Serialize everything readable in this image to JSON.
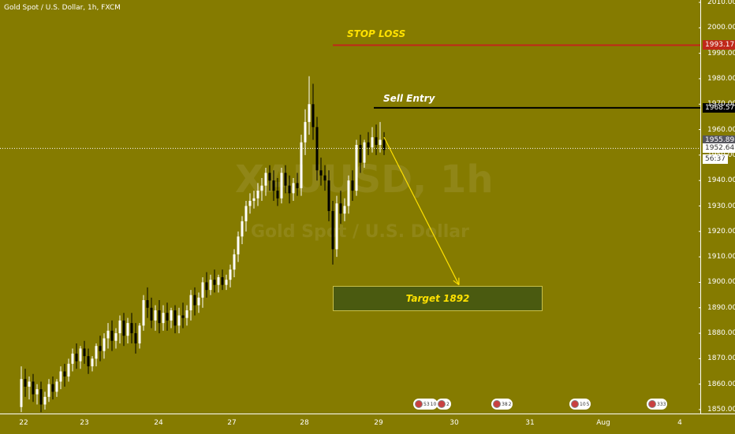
{
  "chart_data": {
    "type": "candlestick",
    "title": "Gold Spot / U.S. Dollar, 1h, FXCM",
    "watermark": {
      "symbol": "XAUUSD, 1h",
      "name": "Gold Spot / U.S. Dollar"
    },
    "y_axis": {
      "range": [
        1846,
        2012
      ],
      "ticks": [
        "2010.00",
        "2000.00",
        "1990.00",
        "1980.00",
        "1970.00",
        "1960.00",
        "1950.00",
        "1940.00",
        "1930.00",
        "1920.00",
        "1910.00",
        "1900.00",
        "1890.00",
        "1880.00",
        "1870.00",
        "1860.00",
        "1850.00"
      ]
    },
    "x_axis": {
      "ticks": [
        "22",
        "23",
        "24",
        "27",
        "28",
        "29",
        "30",
        "31",
        "Aug",
        "4"
      ]
    },
    "price_labels": {
      "stop_loss": "1993.17",
      "sell_entry": "1968.57",
      "last_price": "1955.89",
      "current_price": "1952.64",
      "countdown": "56:37"
    },
    "annotations": {
      "stop_loss": "STOP LOSS",
      "sell_entry": "Sell Entry",
      "target": "Target 1892"
    },
    "events": [
      {
        "label": "53",
        "label2": "10"
      },
      {
        "label": "2"
      },
      {
        "label": "38",
        "label2": "2"
      },
      {
        "label": "10",
        "label2": "5"
      },
      {
        "label": "333"
      }
    ],
    "colors": {
      "background": "#857b00",
      "up": "#ffffff",
      "down": "#000000",
      "stop_line": "#c0281a",
      "entry_line": "#000000",
      "projection": "#ffe100"
    },
    "candles": [
      {
        "o": 1851,
        "h": 1867,
        "c": 1862,
        "l": 1849
      },
      {
        "o": 1862,
        "h": 1866,
        "c": 1859,
        "l": 1855
      },
      {
        "o": 1859,
        "h": 1863,
        "c": 1861,
        "l": 1854
      },
      {
        "o": 1861,
        "h": 1864,
        "c": 1856,
        "l": 1853
      },
      {
        "o": 1856,
        "h": 1860,
        "c": 1858,
        "l": 1852
      },
      {
        "o": 1858,
        "h": 1861,
        "c": 1852,
        "l": 1849
      },
      {
        "o": 1852,
        "h": 1857,
        "c": 1855,
        "l": 1850
      },
      {
        "o": 1855,
        "h": 1862,
        "c": 1860,
        "l": 1853
      },
      {
        "o": 1860,
        "h": 1863,
        "c": 1857,
        "l": 1854
      },
      {
        "o": 1857,
        "h": 1862,
        "c": 1861,
        "l": 1855
      },
      {
        "o": 1861,
        "h": 1867,
        "c": 1865,
        "l": 1858
      },
      {
        "o": 1865,
        "h": 1868,
        "c": 1863,
        "l": 1859
      },
      {
        "o": 1863,
        "h": 1870,
        "c": 1868,
        "l": 1861
      },
      {
        "o": 1868,
        "h": 1874,
        "c": 1872,
        "l": 1865
      },
      {
        "o": 1872,
        "h": 1876,
        "c": 1869,
        "l": 1866
      },
      {
        "o": 1869,
        "h": 1875,
        "c": 1874,
        "l": 1866
      },
      {
        "o": 1874,
        "h": 1877,
        "c": 1871,
        "l": 1868
      },
      {
        "o": 1871,
        "h": 1874,
        "c": 1867,
        "l": 1864
      },
      {
        "o": 1867,
        "h": 1871,
        "c": 1870,
        "l": 1865
      },
      {
        "o": 1870,
        "h": 1876,
        "c": 1875,
        "l": 1867
      },
      {
        "o": 1875,
        "h": 1879,
        "c": 1873,
        "l": 1869
      },
      {
        "o": 1873,
        "h": 1880,
        "c": 1878,
        "l": 1870
      },
      {
        "o": 1878,
        "h": 1884,
        "c": 1881,
        "l": 1874
      },
      {
        "o": 1881,
        "h": 1885,
        "c": 1877,
        "l": 1873
      },
      {
        "o": 1877,
        "h": 1882,
        "c": 1880,
        "l": 1874
      },
      {
        "o": 1880,
        "h": 1887,
        "c": 1885,
        "l": 1876
      },
      {
        "o": 1885,
        "h": 1888,
        "c": 1879,
        "l": 1875
      },
      {
        "o": 1879,
        "h": 1886,
        "c": 1884,
        "l": 1876
      },
      {
        "o": 1884,
        "h": 1888,
        "c": 1880,
        "l": 1876
      },
      {
        "o": 1880,
        "h": 1884,
        "c": 1876,
        "l": 1872
      },
      {
        "o": 1876,
        "h": 1884,
        "c": 1883,
        "l": 1874
      },
      {
        "o": 1883,
        "h": 1895,
        "c": 1893,
        "l": 1881
      },
      {
        "o": 1893,
        "h": 1898,
        "c": 1890,
        "l": 1886
      },
      {
        "o": 1890,
        "h": 1894,
        "c": 1885,
        "l": 1882
      },
      {
        "o": 1885,
        "h": 1891,
        "c": 1889,
        "l": 1881
      },
      {
        "o": 1889,
        "h": 1893,
        "c": 1884,
        "l": 1880
      },
      {
        "o": 1884,
        "h": 1891,
        "c": 1888,
        "l": 1881
      },
      {
        "o": 1888,
        "h": 1892,
        "c": 1885,
        "l": 1881
      },
      {
        "o": 1885,
        "h": 1890,
        "c": 1889,
        "l": 1882
      },
      {
        "o": 1889,
        "h": 1891,
        "c": 1883,
        "l": 1880
      },
      {
        "o": 1883,
        "h": 1890,
        "c": 1887,
        "l": 1880
      },
      {
        "o": 1887,
        "h": 1892,
        "c": 1886,
        "l": 1882
      },
      {
        "o": 1886,
        "h": 1891,
        "c": 1889,
        "l": 1883
      },
      {
        "o": 1889,
        "h": 1897,
        "c": 1895,
        "l": 1885
      },
      {
        "o": 1895,
        "h": 1898,
        "c": 1891,
        "l": 1887
      },
      {
        "o": 1891,
        "h": 1896,
        "c": 1894,
        "l": 1888
      },
      {
        "o": 1894,
        "h": 1902,
        "c": 1900,
        "l": 1890
      },
      {
        "o": 1900,
        "h": 1904,
        "c": 1897,
        "l": 1894
      },
      {
        "o": 1897,
        "h": 1903,
        "c": 1901,
        "l": 1895
      },
      {
        "o": 1901,
        "h": 1905,
        "c": 1899,
        "l": 1896
      },
      {
        "o": 1899,
        "h": 1903,
        "c": 1902,
        "l": 1896
      },
      {
        "o": 1902,
        "h": 1905,
        "c": 1899,
        "l": 1897
      },
      {
        "o": 1899,
        "h": 1903,
        "c": 1901,
        "l": 1897
      },
      {
        "o": 1901,
        "h": 1907,
        "c": 1905,
        "l": 1898
      },
      {
        "o": 1905,
        "h": 1913,
        "c": 1911,
        "l": 1902
      },
      {
        "o": 1911,
        "h": 1920,
        "c": 1918,
        "l": 1908
      },
      {
        "o": 1918,
        "h": 1926,
        "c": 1924,
        "l": 1915
      },
      {
        "o": 1924,
        "h": 1932,
        "c": 1930,
        "l": 1920
      },
      {
        "o": 1930,
        "h": 1935,
        "c": 1932,
        "l": 1927
      },
      {
        "o": 1932,
        "h": 1936,
        "c": 1933,
        "l": 1929
      },
      {
        "o": 1933,
        "h": 1939,
        "c": 1936,
        "l": 1930
      },
      {
        "o": 1936,
        "h": 1941,
        "c": 1938,
        "l": 1932
      },
      {
        "o": 1938,
        "h": 1945,
        "c": 1943,
        "l": 1934
      },
      {
        "o": 1943,
        "h": 1946,
        "c": 1940,
        "l": 1936
      },
      {
        "o": 1940,
        "h": 1944,
        "c": 1936,
        "l": 1932
      },
      {
        "o": 1936,
        "h": 1941,
        "c": 1933,
        "l": 1930
      },
      {
        "o": 1933,
        "h": 1945,
        "c": 1943,
        "l": 1931
      },
      {
        "o": 1943,
        "h": 1946,
        "c": 1938,
        "l": 1935
      },
      {
        "o": 1938,
        "h": 1942,
        "c": 1935,
        "l": 1931
      },
      {
        "o": 1935,
        "h": 1941,
        "c": 1939,
        "l": 1932
      },
      {
        "o": 1939,
        "h": 1943,
        "c": 1937,
        "l": 1934
      },
      {
        "o": 1937,
        "h": 1958,
        "c": 1955,
        "l": 1934
      },
      {
        "o": 1955,
        "h": 1968,
        "c": 1963,
        "l": 1950
      },
      {
        "o": 1963,
        "h": 1981,
        "c": 1970,
        "l": 1958
      },
      {
        "o": 1970,
        "h": 1978,
        "c": 1961,
        "l": 1956
      },
      {
        "o": 1961,
        "h": 1965,
        "c": 1944,
        "l": 1940
      },
      {
        "o": 1944,
        "h": 1949,
        "c": 1942,
        "l": 1938
      },
      {
        "o": 1942,
        "h": 1946,
        "c": 1940,
        "l": 1936
      },
      {
        "o": 1940,
        "h": 1944,
        "c": 1928,
        "l": 1924
      },
      {
        "o": 1928,
        "h": 1932,
        "c": 1913,
        "l": 1907
      },
      {
        "o": 1913,
        "h": 1934,
        "c": 1931,
        "l": 1910
      },
      {
        "o": 1931,
        "h": 1936,
        "c": 1927,
        "l": 1923
      },
      {
        "o": 1927,
        "h": 1933,
        "c": 1930,
        "l": 1924
      },
      {
        "o": 1930,
        "h": 1942,
        "c": 1940,
        "l": 1927
      },
      {
        "o": 1940,
        "h": 1944,
        "c": 1936,
        "l": 1932
      },
      {
        "o": 1936,
        "h": 1956,
        "c": 1954,
        "l": 1934
      },
      {
        "o": 1954,
        "h": 1958,
        "c": 1947,
        "l": 1943
      },
      {
        "o": 1947,
        "h": 1956,
        "c": 1955,
        "l": 1945
      },
      {
        "o": 1955,
        "h": 1959,
        "c": 1953,
        "l": 1950
      },
      {
        "o": 1953,
        "h": 1961,
        "c": 1957,
        "l": 1951
      },
      {
        "o": 1957,
        "h": 1962,
        "c": 1954,
        "l": 1950
      },
      {
        "o": 1954,
        "h": 1963,
        "c": 1956,
        "l": 1951
      },
      {
        "o": 1956,
        "h": 1959,
        "c": 1952,
        "l": 1950
      }
    ]
  }
}
